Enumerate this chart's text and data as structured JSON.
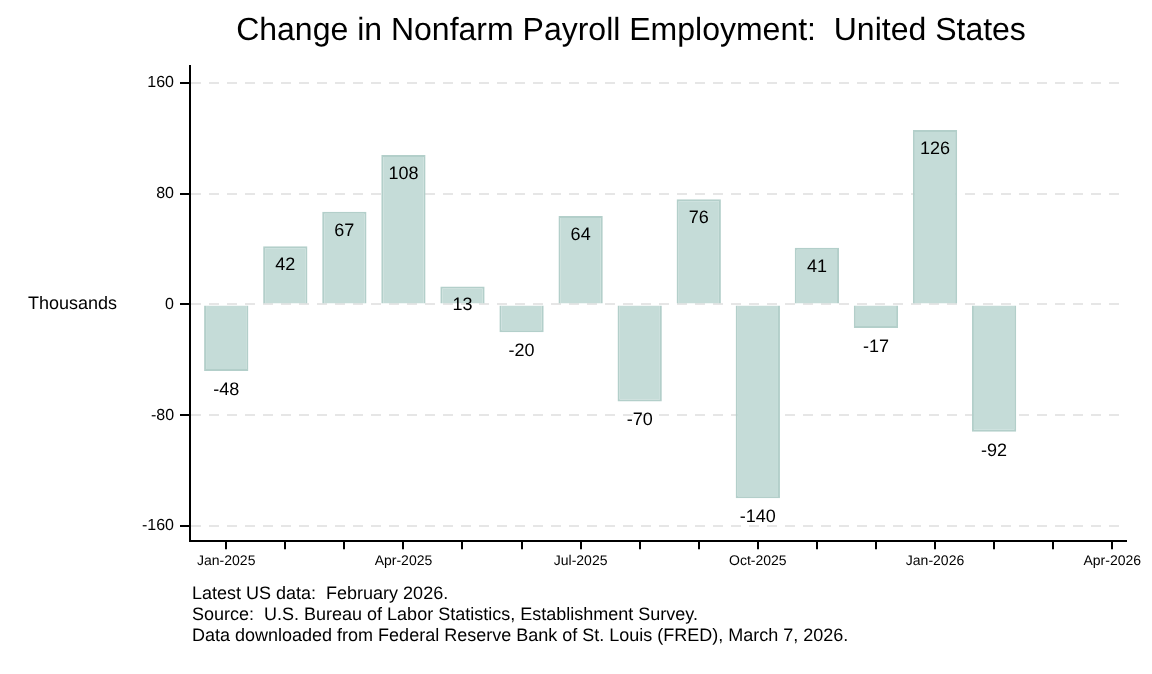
{
  "chart_data": {
    "type": "bar",
    "title": "Change in Nonfarm Payroll Employment:  United States",
    "ylabel": "Thousands",
    "x": [
      "2025-01",
      "2025-02",
      "2025-03",
      "2025-04",
      "2025-05",
      "2025-06",
      "2025-07",
      "2025-08",
      "2025-09",
      "2025-10",
      "2025-11",
      "2025-12",
      "2026-01",
      "2026-02"
    ],
    "values": [
      -48,
      42,
      67,
      108,
      13,
      -20,
      64,
      -70,
      76,
      -140,
      41,
      -17,
      126,
      -92
    ],
    "color": "#c5dcd8",
    "data_labels": true,
    "xlim": [
      "2024-12-13",
      "2026-04-08"
    ],
    "xticks": [
      {
        "value": "2025-01",
        "label": "Jan-2025"
      },
      {
        "value": "2025-02",
        "label": null
      },
      {
        "value": "2025-03",
        "label": null
      },
      {
        "value": "2025-04",
        "label": "Apr-2025"
      },
      {
        "value": "2025-05",
        "label": null
      },
      {
        "value": "2025-06",
        "label": null
      },
      {
        "value": "2025-07",
        "label": "Jul-2025"
      },
      {
        "value": "2025-08",
        "label": null
      },
      {
        "value": "2025-09",
        "label": null
      },
      {
        "value": "2025-10",
        "label": "Oct-2025"
      },
      {
        "value": "2025-11",
        "label": null
      },
      {
        "value": "2025-12",
        "label": null
      },
      {
        "value": "2026-01",
        "label": "Jan-2026"
      },
      {
        "value": "2026-02",
        "label": null
      },
      {
        "value": "2026-03",
        "label": null
      },
      {
        "value": "2026-04",
        "label": "Apr-2026"
      }
    ],
    "ylim": [
      -171,
      172
    ],
    "yticks": [
      -160,
      -80,
      0,
      80,
      160
    ],
    "grid": "y",
    "line_style": "dashed",
    "legend": false,
    "annotations": [
      "Latest US data:  February 2026.",
      "Source:  U.S. Bureau of Labor Statistics, Establishment Survey.",
      "Data downloaded from Federal Reserve Bank of St. Louis (FRED), March 7, 2026."
    ]
  }
}
